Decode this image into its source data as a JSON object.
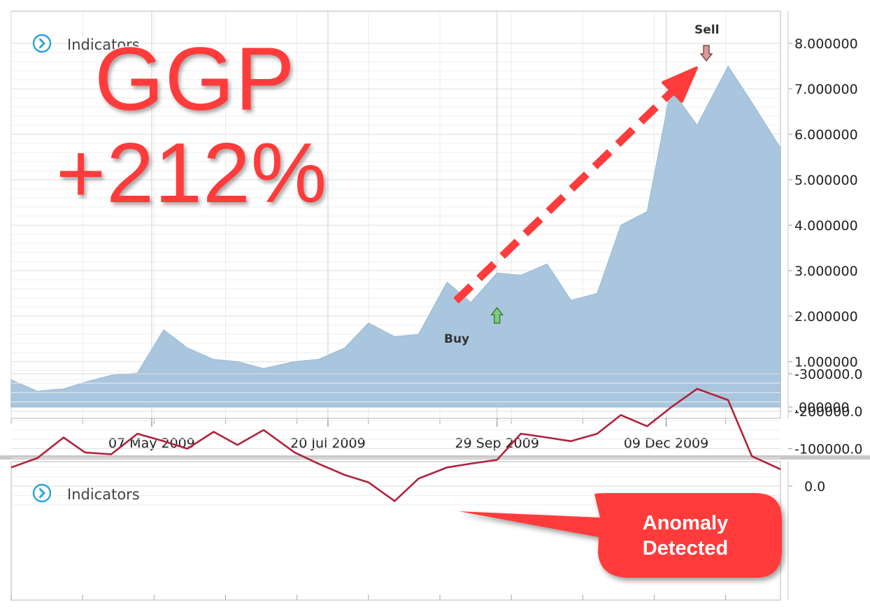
{
  "ticker": "GGP",
  "gain": "+212%",
  "price_panel": {
    "label": "Indicators",
    "y_ticks": [
      "8.000000",
      "7.000000",
      "6.000000",
      "5.000000",
      "4.000000",
      "3.000000",
      "2.000000",
      "1.000000",
      ".000000"
    ],
    "x_ticks": [
      "07 May 2009",
      "20 Jul 2009",
      "29 Sep 2009",
      "09 Dec 2009"
    ]
  },
  "indicator_panel": {
    "label": "Indicators",
    "y_ticks": [
      "0.0",
      "-100000.0",
      "-200000.0",
      "-300000.0"
    ]
  },
  "annotations": {
    "buy": "Buy",
    "sell": "Sell",
    "anomaly_line1": "Anomaly",
    "anomaly_line2": "Detected"
  },
  "colors": {
    "area_fill": "#a9c6de",
    "indicator_line": "#b0223c",
    "accent_red": "#ff3b3b",
    "buy_arrow": "#7dcc7d",
    "sell_arrow": "#d89a9a",
    "panel_button": "#29a3dc"
  },
  "chart_data": [
    {
      "type": "area",
      "x": [
        "2009-03-09",
        "2009-03-20",
        "2009-03-31",
        "2009-04-09",
        "2009-04-20",
        "2009-05-01",
        "2009-05-12",
        "2009-05-22",
        "2009-06-02",
        "2009-06-12",
        "2009-06-23",
        "2009-07-06",
        "2009-07-16",
        "2009-07-27",
        "2009-08-06",
        "2009-08-17",
        "2009-08-27",
        "2009-09-08",
        "2009-09-18",
        "2009-09-29",
        "2009-10-09",
        "2009-10-20",
        "2009-10-30",
        "2009-11-10",
        "2009-11-20",
        "2009-12-01",
        "2009-12-11",
        "2009-12-22",
        "2010-01-04",
        "2010-01-14",
        "2010-01-26"
      ],
      "y": [
        0.6,
        0.35,
        0.4,
        0.55,
        0.7,
        0.75,
        1.7,
        1.3,
        1.05,
        1.0,
        0.85,
        1.0,
        1.05,
        1.3,
        1.85,
        1.55,
        1.6,
        2.75,
        2.3,
        2.95,
        2.9,
        3.15,
        2.35,
        2.5,
        4.0,
        4.3,
        7.0,
        6.2,
        7.5,
        6.7,
        5.7
      ],
      "ylim": [
        0,
        8.4
      ],
      "y_ticks": [
        0,
        1,
        2,
        3,
        4,
        5,
        6,
        7,
        8
      ],
      "x_tick_labels": [
        "07 May 2009",
        "20 Jul 2009",
        "29 Sep 2009",
        "09 Dec 2009"
      ],
      "signals": [
        {
          "label": "Buy",
          "x": "2009-09-29",
          "y": 2.3
        },
        {
          "label": "Sell",
          "x": "2010-01-04",
          "y": 7.6
        }
      ]
    },
    {
      "type": "line",
      "x": [
        "2009-03-09",
        "2009-03-20",
        "2009-03-31",
        "2009-04-09",
        "2009-04-20",
        "2009-05-01",
        "2009-05-12",
        "2009-05-22",
        "2009-06-02",
        "2009-06-12",
        "2009-06-23",
        "2009-07-06",
        "2009-07-16",
        "2009-07-27",
        "2009-08-06",
        "2009-08-17",
        "2009-08-27",
        "2009-09-08",
        "2009-09-18",
        "2009-09-29",
        "2009-10-09",
        "2009-10-20",
        "2009-10-30",
        "2009-11-10",
        "2009-11-20",
        "2009-12-01",
        "2009-12-11",
        "2009-12-22",
        "2010-01-04",
        "2010-01-14",
        "2010-01-26"
      ],
      "y": [
        -50000,
        -75000,
        -130000,
        -90000,
        -85000,
        -140000,
        -120000,
        -100000,
        -145000,
        -110000,
        -150000,
        -90000,
        -60000,
        -30000,
        -10000,
        40000,
        -20000,
        -50000,
        -60000,
        -70000,
        -140000,
        -130000,
        -120000,
        -140000,
        -190000,
        -160000,
        -210000,
        -260000,
        -230000,
        -80000,
        -45000
      ],
      "ylim": [
        -310000,
        60000
      ],
      "y_ticks": [
        0,
        -100000,
        -200000,
        -300000
      ],
      "annotations": [
        {
          "label": "Anomaly Detected",
          "x": "2009-09-29"
        }
      ]
    }
  ]
}
